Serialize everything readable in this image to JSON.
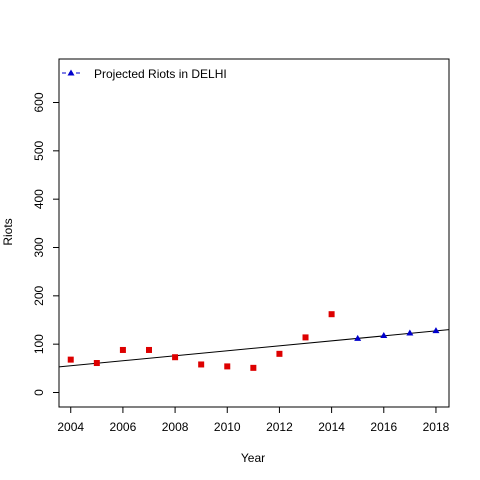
{
  "chart_data": {
    "type": "scatter",
    "xlabel": "Year",
    "ylabel": "Riots",
    "xlim": [
      2003.55,
      2018.5
    ],
    "ylim": [
      -30,
      690
    ],
    "x_ticks": [
      "2004",
      "2006",
      "2008",
      "2010",
      "2012",
      "2014",
      "2016",
      "2018"
    ],
    "y_ticks": [
      "0",
      "100",
      "200",
      "300",
      "400",
      "500",
      "600"
    ],
    "legend": {
      "label": "Projected Riots in DELHI",
      "position": "top-left"
    },
    "series": [
      {
        "marker": "square",
        "color": "#dd0000",
        "points": [
          {
            "x": 2004,
            "y": 68
          },
          {
            "x": 2005,
            "y": 61
          },
          {
            "x": 2006,
            "y": 88
          },
          {
            "x": 2007,
            "y": 88
          },
          {
            "x": 2008,
            "y": 73
          },
          {
            "x": 2009,
            "y": 58
          },
          {
            "x": 2010,
            "y": 54
          },
          {
            "x": 2011,
            "y": 51
          },
          {
            "x": 2012,
            "y": 80
          },
          {
            "x": 2013,
            "y": 114
          },
          {
            "x": 2014,
            "y": 162
          }
        ]
      },
      {
        "name": "Projected Riots in DELHI",
        "marker": "triangle",
        "color": "#0000cc",
        "points": [
          {
            "x": 2015,
            "y": 112
          },
          {
            "x": 2016,
            "y": 118
          },
          {
            "x": 2017,
            "y": 123
          },
          {
            "x": 2018,
            "y": 128
          }
        ]
      }
    ],
    "trend_line": {
      "color": "#000000",
      "from": {
        "x": 2003.55,
        "y": 53
      },
      "to": {
        "x": 2018.5,
        "y": 130
      }
    }
  }
}
